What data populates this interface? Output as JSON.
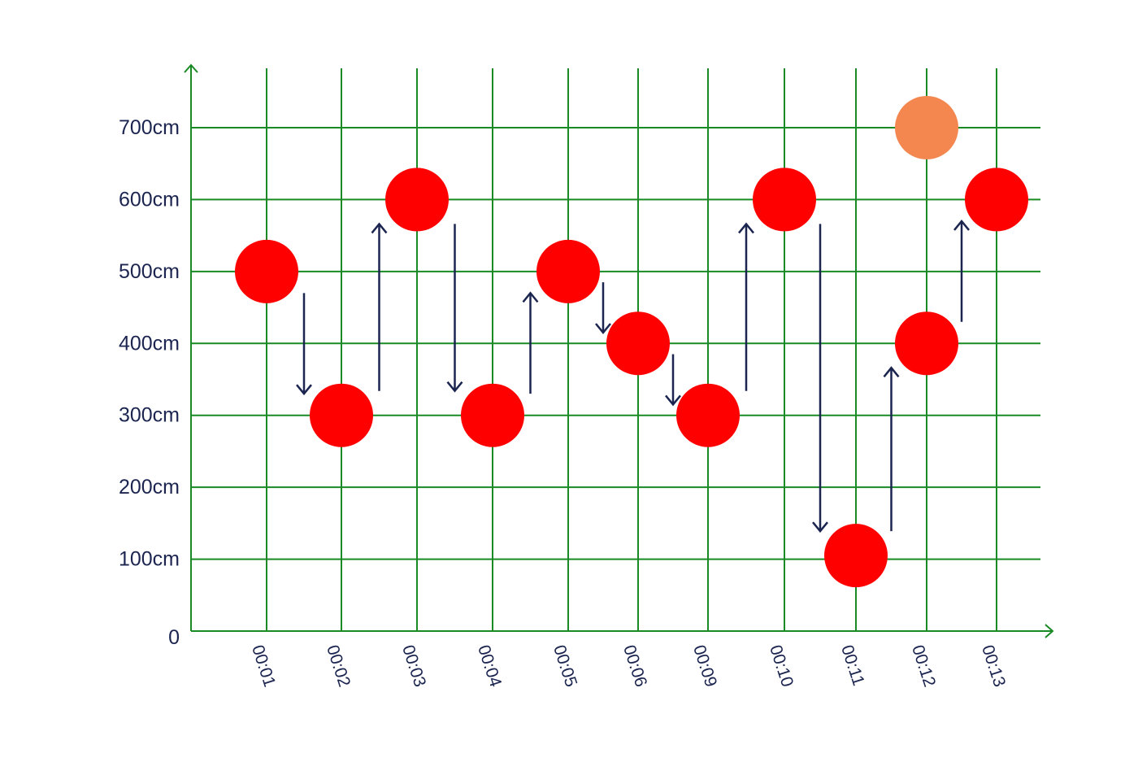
{
  "chart_data": {
    "type": "scatter",
    "title": "",
    "xlabel": "",
    "ylabel": "",
    "unit": "cm",
    "categories": [
      "00:01",
      "00:02",
      "00:03",
      "00:04",
      "00:05",
      "00:06",
      "00:09",
      "00:10",
      "00:11",
      "00:12",
      "00:13"
    ],
    "y_ticks": [
      {
        "value": 0,
        "label": "0"
      },
      {
        "value": 100,
        "label": "100cm"
      },
      {
        "value": 200,
        "label": "200cm"
      },
      {
        "value": 300,
        "label": "300cm"
      },
      {
        "value": 400,
        "label": "400cm"
      },
      {
        "value": 500,
        "label": "500cm"
      },
      {
        "value": 600,
        "label": "600cm"
      },
      {
        "value": 700,
        "label": "700cm"
      }
    ],
    "ylim": [
      0,
      780
    ],
    "grid": true,
    "series": [
      {
        "values": [
          500,
          300,
          600,
          300,
          500,
          400,
          300,
          600,
          105,
          400,
          600
        ],
        "color": "#ff0000"
      },
      {
        "values": [
          null,
          null,
          null,
          null,
          null,
          null,
          null,
          null,
          null,
          700,
          null
        ],
        "color": "#f4874f"
      }
    ],
    "transitions": [
      {
        "from": "00:01",
        "to": "00:02",
        "direction": "down"
      },
      {
        "from": "00:02",
        "to": "00:03",
        "direction": "up"
      },
      {
        "from": "00:03",
        "to": "00:04",
        "direction": "down"
      },
      {
        "from": "00:04",
        "to": "00:05",
        "direction": "up"
      },
      {
        "from": "00:05",
        "to": "00:06",
        "direction": "down"
      },
      {
        "from": "00:06",
        "to": "00:09",
        "direction": "down"
      },
      {
        "from": "00:09",
        "to": "00:10",
        "direction": "up"
      },
      {
        "from": "00:10",
        "to": "00:11",
        "direction": "down"
      },
      {
        "from": "00:11",
        "to": "00:12",
        "direction": "up"
      },
      {
        "from": "00:12",
        "to": "00:13",
        "direction": "up"
      }
    ],
    "colors": {
      "grid": "#1a8a24",
      "arrow": "#1b2550",
      "text": "#1b2550"
    }
  }
}
